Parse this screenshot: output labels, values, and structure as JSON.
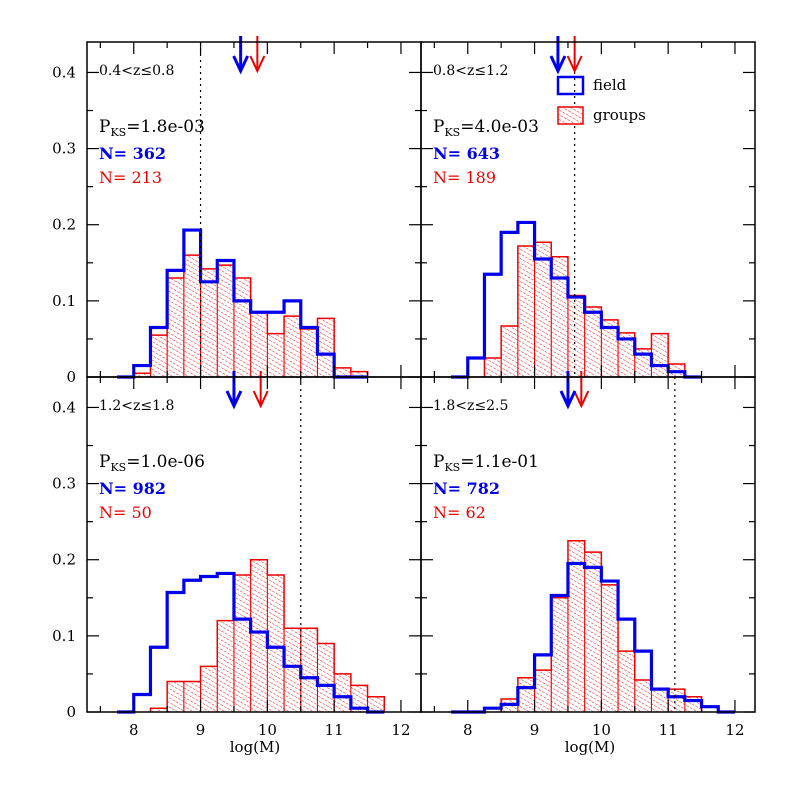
{
  "chart_data": {
    "type": "histogram",
    "xlabel": "log(M)",
    "xlim": [
      7.3,
      12.3
    ],
    "ylim": [
      0,
      0.44
    ],
    "xticks": [
      8,
      9,
      10,
      11,
      12
    ],
    "yticks": [
      0,
      0.1,
      0.2,
      0.3,
      0.4
    ],
    "tick_labels_x": [
      "8",
      "9",
      "10",
      "11",
      "12"
    ],
    "tick_labels_y": [
      "0",
      "0.1",
      "0.2",
      "0.3",
      "0.4"
    ],
    "legend": [
      {
        "name": "field",
        "color": "#0000ee",
        "style": "outline"
      },
      {
        "name": "groups",
        "color": "#ee0000",
        "style": "hatched"
      }
    ],
    "colors": {
      "field": "#0000ee",
      "groups": "#ee0000"
    },
    "bin_width": 0.25,
    "panels": [
      {
        "redshift_label": "0.4<z≤0.8",
        "pks_base": "P",
        "pks_sub": "KS",
        "pks_value": "=1.8e-03",
        "n_field": "N= 362",
        "n_groups": "N= 213",
        "vline": 9.0,
        "arrow_field": 9.6,
        "arrow_groups": 9.85,
        "field": {
          "bin_start": 7.75,
          "values": [
            0.0,
            0.015,
            0.065,
            0.14,
            0.193,
            0.125,
            0.153,
            0.1,
            0.085,
            0.085,
            0.1,
            0.065,
            0.03,
            0.0,
            0.0
          ]
        },
        "groups": {
          "bin_start": 8.0,
          "values": [
            0.005,
            0.055,
            0.13,
            0.16,
            0.142,
            0.147,
            0.13,
            0.085,
            0.057,
            0.08,
            0.063,
            0.077,
            0.012,
            0.007
          ]
        }
      },
      {
        "redshift_label": "0.8<z≤1.2",
        "pks_base": "P",
        "pks_sub": "KS",
        "pks_value": "=4.0e-03",
        "n_field": "N= 643",
        "n_groups": "N= 189",
        "vline": 9.6,
        "arrow_field": 9.35,
        "arrow_groups": 9.6,
        "field": {
          "bin_start": 7.75,
          "values": [
            0.0,
            0.025,
            0.135,
            0.19,
            0.203,
            0.155,
            0.13,
            0.105,
            0.085,
            0.065,
            0.05,
            0.03,
            0.015,
            0.007,
            0.0
          ]
        },
        "groups": {
          "bin_start": 8.25,
          "values": [
            0.025,
            0.067,
            0.172,
            0.177,
            0.158,
            0.107,
            0.092,
            0.075,
            0.058,
            0.037,
            0.057,
            0.017
          ]
        }
      },
      {
        "redshift_label": "1.2<z≤1.8",
        "pks_base": "P",
        "pks_sub": "KS",
        "pks_value": "=1.0e-06",
        "n_field": "N= 982",
        "n_groups": "N= 50",
        "vline": 10.5,
        "arrow_field": 9.5,
        "arrow_groups": 9.9,
        "field": {
          "bin_start": 7.75,
          "values": [
            0.0,
            0.023,
            0.085,
            0.157,
            0.173,
            0.178,
            0.182,
            0.122,
            0.105,
            0.085,
            0.06,
            0.045,
            0.035,
            0.02,
            0.005,
            0.0
          ]
        },
        "groups": {
          "bin_start": 8.25,
          "values": [
            0.005,
            0.04,
            0.04,
            0.06,
            0.12,
            0.18,
            0.2,
            0.18,
            0.11,
            0.11,
            0.09,
            0.05,
            0.035,
            0.02
          ]
        }
      },
      {
        "redshift_label": "1.8<z≤2.5",
        "pks_base": "P",
        "pks_sub": "KS",
        "pks_value": "=1.1e-01",
        "n_field": "N= 782",
        "n_groups": "N= 62",
        "vline": 11.1,
        "arrow_field": 9.5,
        "arrow_groups": 9.7,
        "field": {
          "bin_start": 7.75,
          "values": [
            0.0,
            0.0,
            0.005,
            0.01,
            0.032,
            0.075,
            0.153,
            0.195,
            0.19,
            0.172,
            0.122,
            0.08,
            0.03,
            0.02,
            0.015,
            0.007,
            0.0
          ]
        },
        "groups": {
          "bin_start": 8.5,
          "values": [
            0.017,
            0.045,
            0.055,
            0.15,
            0.225,
            0.21,
            0.167,
            0.08,
            0.042,
            0.03,
            0.03,
            0.02
          ]
        }
      }
    ]
  }
}
